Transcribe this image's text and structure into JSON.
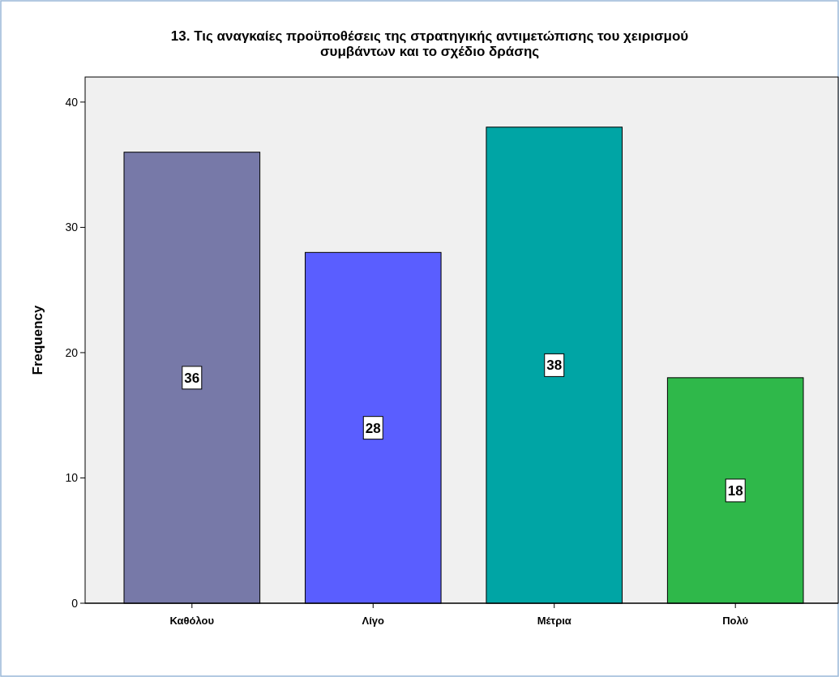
{
  "chart_data": {
    "type": "bar",
    "title": "13. Τις αναγκαίες προϋποθέσεις της στρατηγικής αντιμετώπισης του χειρισμού συμβάντων και το σχέδιο δράσης",
    "ylabel": "Frequency",
    "categories": [
      "Καθόλου",
      "Λίγο",
      "Μέτρια",
      "Πολύ"
    ],
    "values": [
      36,
      28,
      38,
      18
    ],
    "colors": [
      "#7779a8",
      "#5a5eff",
      "#00a5a5",
      "#2fb84a"
    ],
    "ylim": [
      0,
      42
    ],
    "yticks": [
      0,
      10,
      20,
      30,
      40
    ],
    "grid": false,
    "data_labels": true
  }
}
